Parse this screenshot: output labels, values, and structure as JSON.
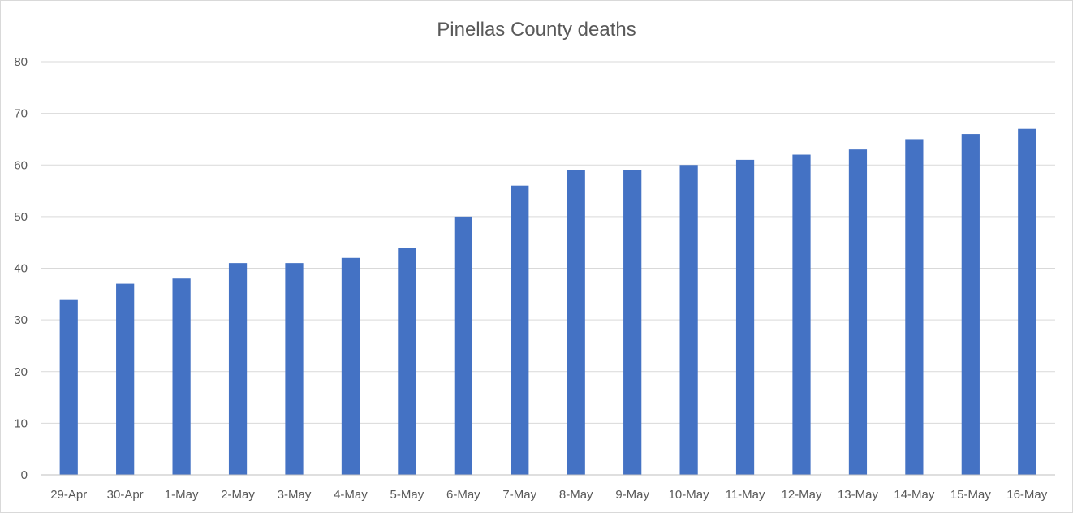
{
  "chart_data": {
    "type": "bar",
    "title": "Pinellas County deaths",
    "xlabel": "",
    "ylabel": "",
    "categories": [
      "29-Apr",
      "30-Apr",
      "1-May",
      "2-May",
      "3-May",
      "4-May",
      "5-May",
      "6-May",
      "7-May",
      "8-May",
      "9-May",
      "10-May",
      "11-May",
      "12-May",
      "13-May",
      "14-May",
      "15-May",
      "16-May"
    ],
    "values": [
      34,
      37,
      38,
      41,
      41,
      42,
      44,
      50,
      56,
      59,
      59,
      60,
      61,
      62,
      63,
      65,
      66,
      67
    ],
    "ylim": [
      0,
      80
    ],
    "yticks": [
      0,
      10,
      20,
      30,
      40,
      50,
      60,
      70,
      80
    ],
    "grid": true,
    "legend": "none",
    "bar_color": "#4472c4"
  }
}
